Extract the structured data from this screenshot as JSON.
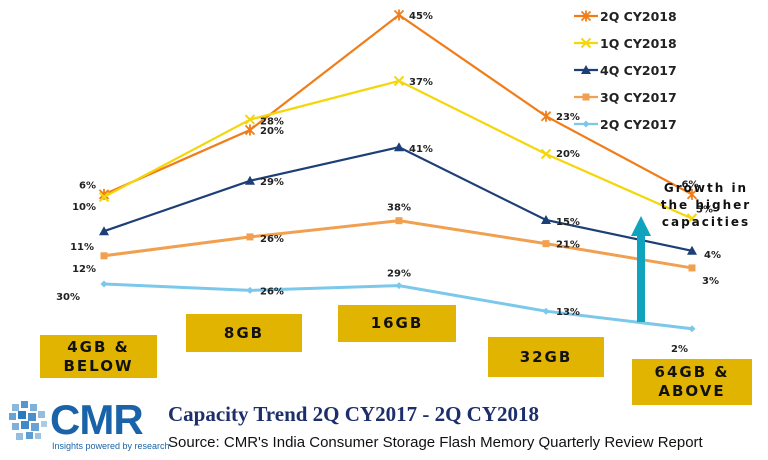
{
  "chart_data": {
    "type": "line",
    "title": "Capacity Trend 2Q CY2017 - 2Q CY2018",
    "categories": [
      "4GB &\nBELOW",
      "8GB",
      "16GB",
      "32GB",
      "64GB &\nABOVE"
    ],
    "series": [
      {
        "name": "2Q CY2018",
        "values": [
          6,
          20,
          45,
          23,
          6
        ],
        "labels": [
          "6%",
          "20%",
          "45%",
          "23%",
          "6%"
        ],
        "color": "#f07d1a",
        "marker": "star"
      },
      {
        "name": "1Q CY2018",
        "values": [
          10,
          28,
          37,
          20,
          5
        ],
        "labels": [
          "10%",
          "28%",
          "37%",
          "20%",
          "5%"
        ],
        "color": "#f5d60a",
        "marker": "x"
      },
      {
        "name": "4Q CY2017",
        "values": [
          11,
          29,
          41,
          15,
          4
        ],
        "labels": [
          "11%",
          "29%",
          "41%",
          "15%",
          "4%"
        ],
        "color": "#1d3f78",
        "marker": "triangle"
      },
      {
        "name": "3Q CY2017",
        "values": [
          12,
          26,
          38,
          21,
          3
        ],
        "labels": [
          "12%",
          "26%",
          "38%",
          "21%",
          "3%"
        ],
        "color": "#f0a050",
        "marker": "square"
      },
      {
        "name": "2Q CY2017",
        "values": [
          30,
          26,
          29,
          13,
          2
        ],
        "labels": [
          "30%",
          "26%",
          "29%",
          "13%",
          "2%"
        ],
        "color": "#7cc8ea",
        "marker": "diamond"
      }
    ],
    "legend_position": "top-right",
    "grid": false
  },
  "annotation": "Growth in\nthe higher\ncapacities",
  "arrow_color": "#0fa3bd",
  "category_box_color": "#e0b400",
  "footer": {
    "logo_text": "CMR",
    "logo_tagline": "Insights powered by research",
    "title": "Capacity Trend 2Q CY2017 - 2Q CY2018",
    "source": "Source: CMR's India Consumer Storage Flash Memory Quarterly Review Report"
  }
}
